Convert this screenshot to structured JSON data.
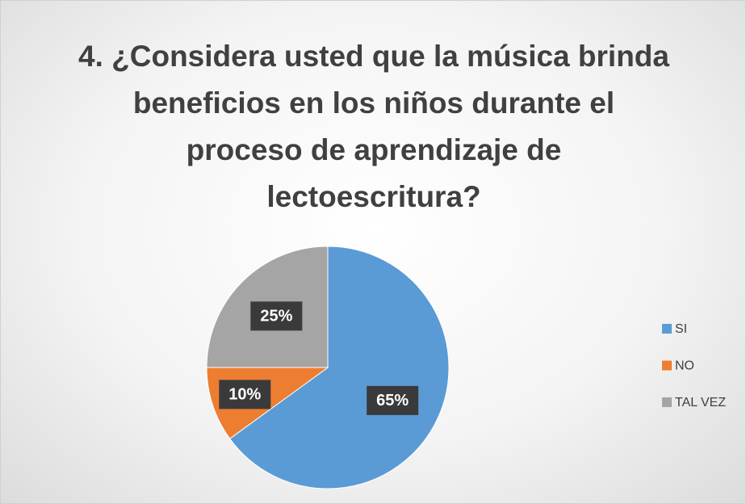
{
  "chart_data": {
    "type": "pie",
    "title": "4. ¿Considera usted que la música brinda beneficios en los niños durante el proceso de aprendizaje de lectoescritura?",
    "categories": [
      "SI",
      "NO",
      "TAL VEZ"
    ],
    "values": [
      65,
      10,
      25
    ],
    "value_labels": [
      "65%",
      "10%",
      "25%"
    ],
    "colors": [
      "#5b9bd5",
      "#ed7d31",
      "#a5a5a5"
    ],
    "legend": "right"
  }
}
